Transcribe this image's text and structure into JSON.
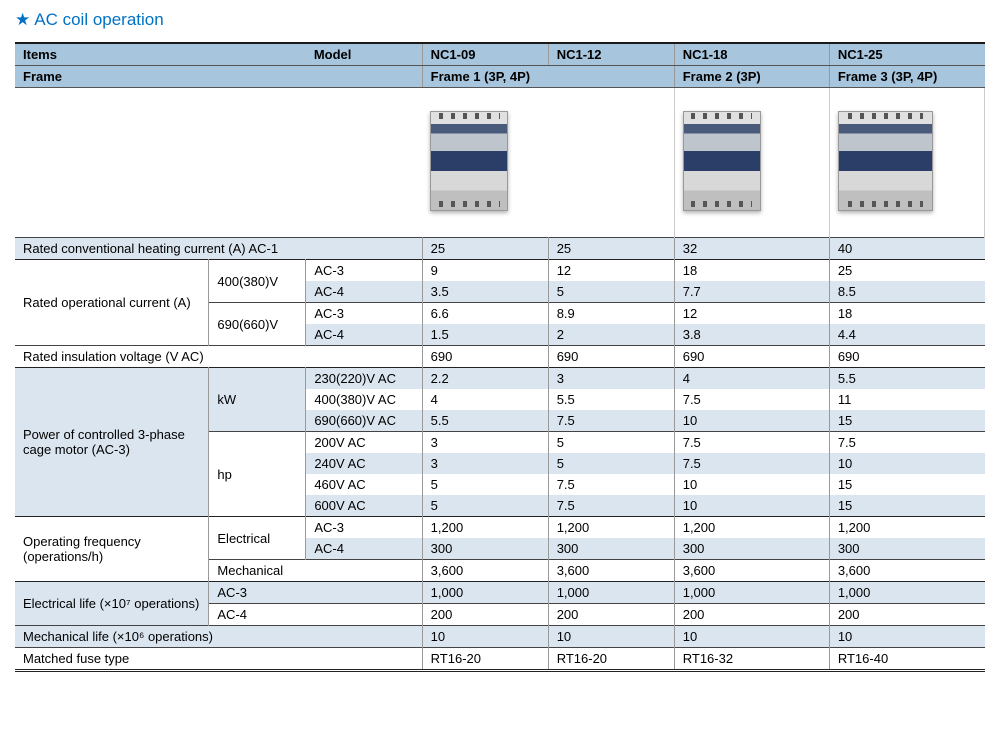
{
  "title": "AC coil operation",
  "header": {
    "items": "Items",
    "model": "Model",
    "nc09": "NC1-09",
    "nc12": "NC1-12",
    "nc18": "NC1-18",
    "nc25": "NC1-25",
    "frame": "Frame",
    "frame1": "Frame 1 (3P, 4P)",
    "frame2": "Frame 2 (3P)",
    "frame3": "Frame 3 (3P, 4P)"
  },
  "rows": {
    "rchc": {
      "label": "Rated conventional heating current (A) AC-1",
      "v": [
        "25",
        "25",
        "32",
        "40"
      ]
    },
    "roc": {
      "label": "Rated operational current (A)",
      "v400": "400(380)V",
      "v690": "690(660)V",
      "r1": {
        "k": "AC-3",
        "v": [
          "9",
          "12",
          "18",
          "25"
        ]
      },
      "r2": {
        "k": "AC-4",
        "v": [
          "3.5",
          "5",
          "7.7",
          "8.5"
        ]
      },
      "r3": {
        "k": "AC-3",
        "v": [
          "6.6",
          "8.9",
          "12",
          "18"
        ]
      },
      "r4": {
        "k": "AC-4",
        "v": [
          "1.5",
          "2",
          "3.8",
          "4.4"
        ]
      }
    },
    "riv": {
      "label": "Rated insulation voltage (V AC)",
      "v": [
        "690",
        "690",
        "690",
        "690"
      ]
    },
    "pcm": {
      "label": "Power of controlled 3-phase cage motor (AC-3)",
      "kw": "kW",
      "hp": "hp",
      "r1": {
        "k": "230(220)V AC",
        "v": [
          "2.2",
          "3",
          "4",
          "5.5"
        ]
      },
      "r2": {
        "k": "400(380)V AC",
        "v": [
          "4",
          "5.5",
          "7.5",
          "11"
        ]
      },
      "r3": {
        "k": "690(660)V AC",
        "v": [
          "5.5",
          "7.5",
          "10",
          "15"
        ]
      },
      "r4": {
        "k": "200V AC",
        "v": [
          "3",
          "5",
          "7.5",
          "7.5"
        ]
      },
      "r5": {
        "k": "240V AC",
        "v": [
          "3",
          "5",
          "7.5",
          "10"
        ]
      },
      "r6": {
        "k": "460V AC",
        "v": [
          "5",
          "7.5",
          "10",
          "15"
        ]
      },
      "r7": {
        "k": "600V AC",
        "v": [
          "5",
          "7.5",
          "10",
          "15"
        ]
      }
    },
    "of": {
      "label": "Operating frequency (operations/h)",
      "elec": "Electrical",
      "mech": "Mechanical",
      "r1": {
        "k": "AC-3",
        "v": [
          "1,200",
          "1,200",
          "1,200",
          "1,200"
        ]
      },
      "r2": {
        "k": "AC-4",
        "v": [
          "300",
          "300",
          "300",
          "300"
        ]
      },
      "r3": {
        "v": [
          "3,600",
          "3,600",
          "3,600",
          "3,600"
        ]
      }
    },
    "el": {
      "label": "Electrical life (×10⁷ operations)",
      "r1": {
        "k": "AC-3",
        "v": [
          "1,000",
          "1,000",
          "1,000",
          "1,000"
        ]
      },
      "r2": {
        "k": "AC-4",
        "v": [
          "200",
          "200",
          "200",
          "200"
        ]
      }
    },
    "ml": {
      "label": "Mechanical life (×10⁶ operations)",
      "v": [
        "10",
        "10",
        "10",
        "10"
      ]
    },
    "mf": {
      "label": "Matched fuse type",
      "v": [
        "RT16-20",
        "RT16-20",
        "RT16-32",
        "RT16-40"
      ]
    }
  }
}
